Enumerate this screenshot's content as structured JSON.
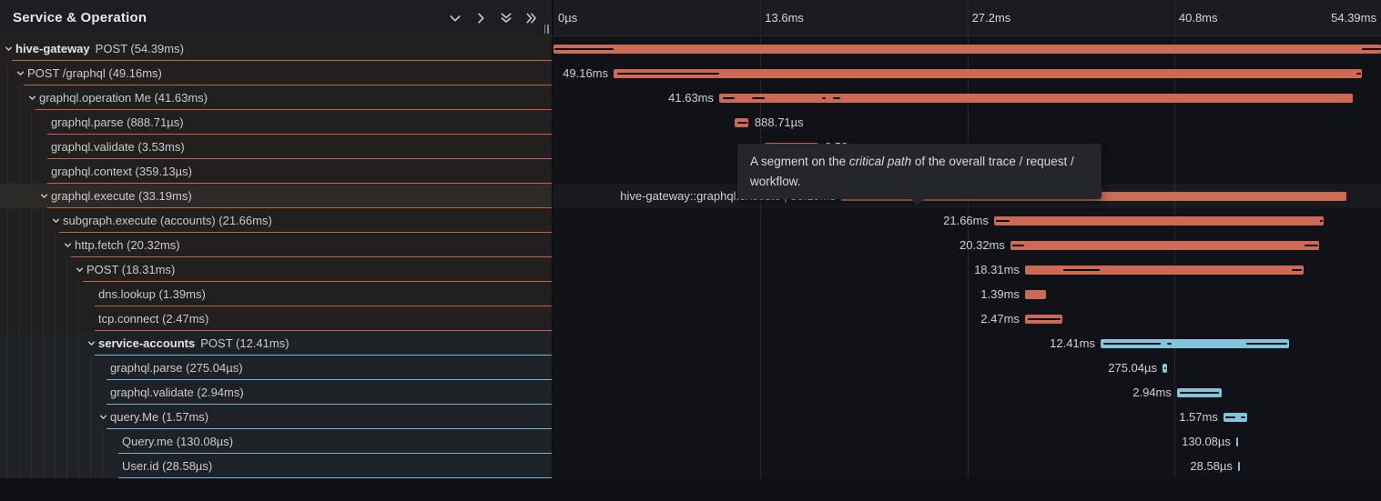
{
  "header": {
    "title": "Service & Operation",
    "icons": [
      {
        "name": "chevron-down-icon",
        "glyph": "chevron-down"
      },
      {
        "name": "chevron-right-icon",
        "glyph": "chevron-right"
      },
      {
        "name": "double-chevron-down-icon",
        "glyph": "double-chevron-down"
      },
      {
        "name": "double-chevron-right-icon",
        "glyph": "double-chevron-right"
      }
    ]
  },
  "timeline": {
    "total_ms": 54.39,
    "ticks": [
      {
        "label": "0µs",
        "pos_ms": 0,
        "align": "left"
      },
      {
        "label": "13.6ms",
        "pos_ms": 13.6,
        "align": "left"
      },
      {
        "label": "27.2ms",
        "pos_ms": 27.2,
        "align": "left"
      },
      {
        "label": "40.8ms",
        "pos_ms": 40.8,
        "align": "left"
      },
      {
        "label": "54.39ms",
        "pos_ms": 54.39,
        "align": "right"
      }
    ]
  },
  "colors": {
    "orange_bar": "#cd6a56",
    "blue_bar": "#82c3de",
    "orange_border": "#c75f49",
    "blue_border": "#74b8d4",
    "critical_line": "#0c0d0f"
  },
  "tooltip": {
    "text_pre": "A segment on the ",
    "text_italic": "critical path",
    "text_post": " of the overall trace / request / workflow."
  },
  "rows": [
    {
      "service": "hive-gateway",
      "label": "POST (54.39ms)",
      "depth": 0,
      "expandable": true,
      "color": "orange",
      "start_ms": 0,
      "duration_ms": 54.39,
      "bar_label": "",
      "label_side": "none",
      "critical": [
        [
          0,
          3.95
        ],
        [
          53.05,
          54.39
        ]
      ]
    },
    {
      "service": "",
      "label": "POST /graphql (49.16ms)",
      "depth": 1,
      "expandable": true,
      "color": "orange",
      "start_ms": 3.95,
      "duration_ms": 49.16,
      "bar_label": "49.16ms",
      "label_side": "left",
      "critical": [
        [
          4.1,
          10.9
        ],
        [
          52.7,
          53.05
        ]
      ]
    },
    {
      "service": "",
      "label": "graphql.operation Me (41.63ms)",
      "depth": 2,
      "expandable": true,
      "color": "orange",
      "start_ms": 10.89,
      "duration_ms": 41.63,
      "bar_label": "41.63ms",
      "label_side": "left",
      "critical": [
        [
          11.07,
          11.9
        ],
        [
          12.98,
          13.88
        ],
        [
          17.6,
          17.9
        ],
        [
          18.3,
          18.85
        ]
      ]
    },
    {
      "service": "",
      "label": "graphql.parse (888.71µs)",
      "depth": 3,
      "expandable": false,
      "color": "orange",
      "start_ms": 11.91,
      "duration_ms": 0.88871,
      "bar_label": "888.71µs",
      "label_side": "right",
      "critical": [
        [
          12.0,
          12.73
        ]
      ]
    },
    {
      "service": "",
      "label": "graphql.validate (3.53ms)",
      "depth": 3,
      "expandable": false,
      "color": "orange",
      "start_ms": 13.88,
      "duration_ms": 3.53,
      "bar_label": "3.53ms",
      "label_side": "right",
      "critical": []
    },
    {
      "service": "",
      "label": "graphql.context (359.13µs)",
      "depth": 3,
      "expandable": false,
      "color": "orange",
      "start_ms": 17.45,
      "duration_ms": 0.35913,
      "bar_label": "359.13µs",
      "label_side": "right",
      "critical": []
    },
    {
      "service": "",
      "label": "graphql.execute (33.19ms)",
      "depth": 3,
      "expandable": true,
      "color": "orange",
      "start_ms": 18.91,
      "duration_ms": 33.19,
      "bar_label": "hive-gateway::graphql.execute | 33.19ms",
      "label_side": "left",
      "critical": [
        [
          19.05,
          28.96
        ]
      ],
      "hovered": true
    },
    {
      "service": "",
      "label": "subgraph.execute (accounts) (21.66ms)",
      "depth": 4,
      "expandable": true,
      "color": "orange",
      "start_ms": 28.96,
      "duration_ms": 21.66,
      "bar_label": "21.66ms",
      "label_side": "left",
      "critical": [
        [
          29.0,
          29.95
        ],
        [
          50.35,
          50.55
        ]
      ]
    },
    {
      "service": "",
      "label": "http.fetch (20.32ms)",
      "depth": 5,
      "expandable": true,
      "color": "orange",
      "start_ms": 30.03,
      "duration_ms": 20.32,
      "bar_label": "20.32ms",
      "label_side": "left",
      "critical": [
        [
          30.1,
          30.95
        ],
        [
          49.3,
          50.25
        ]
      ]
    },
    {
      "service": "",
      "label": "POST (18.31ms)",
      "depth": 6,
      "expandable": true,
      "color": "orange",
      "start_ms": 30.99,
      "duration_ms": 18.31,
      "bar_label": "18.31ms",
      "label_side": "left",
      "critical": [
        [
          33.45,
          35.9
        ],
        [
          48.45,
          49.2
        ]
      ]
    },
    {
      "service": "",
      "label": "dns.lookup (1.39ms)",
      "depth": 7,
      "expandable": false,
      "color": "orange",
      "start_ms": 30.99,
      "duration_ms": 1.39,
      "bar_label": "1.39ms",
      "label_side": "left",
      "critical": []
    },
    {
      "service": "",
      "label": "tcp.connect (2.47ms)",
      "depth": 7,
      "expandable": false,
      "color": "orange",
      "start_ms": 30.99,
      "duration_ms": 2.47,
      "bar_label": "2.47ms",
      "label_side": "left",
      "critical": [
        [
          31.1,
          33.3
        ]
      ]
    },
    {
      "service": "service-accounts",
      "label": "POST (12.41ms)",
      "depth": 7,
      "expandable": true,
      "color": "blue",
      "start_ms": 35.96,
      "duration_ms": 12.41,
      "bar_label": "12.41ms",
      "label_side": "left",
      "critical": [
        [
          36.1,
          39.9
        ],
        [
          40.25,
          40.65
        ],
        [
          45.45,
          48.25
        ]
      ]
    },
    {
      "service": "",
      "label": "graphql.parse (275.04µs)",
      "depth": 8,
      "expandable": false,
      "color": "blue",
      "start_ms": 40.03,
      "duration_ms": 0.27504,
      "bar_label": "275.04µs",
      "label_side": "left",
      "critical": [
        [
          40.08,
          40.18
        ]
      ]
    },
    {
      "service": "",
      "label": "graphql.validate (2.94ms)",
      "depth": 8,
      "expandable": false,
      "color": "blue",
      "start_ms": 40.98,
      "duration_ms": 2.94,
      "bar_label": "2.94ms",
      "label_side": "left",
      "critical": [
        [
          41.1,
          43.75
        ]
      ]
    },
    {
      "service": "",
      "label": "query.Me (1.57ms)",
      "depth": 8,
      "expandable": true,
      "color": "blue",
      "start_ms": 44.03,
      "duration_ms": 1.57,
      "bar_label": "1.57ms",
      "label_side": "left",
      "critical": [
        [
          44.1,
          44.8
        ],
        [
          45.1,
          45.45
        ]
      ]
    },
    {
      "service": "",
      "label": "Query.me (130.08µs)",
      "depth": 9,
      "expandable": false,
      "color": "blue",
      "start_ms": 44.87,
      "duration_ms": 0.13008,
      "bar_label": "130.08µs",
      "label_side": "left",
      "critical": []
    },
    {
      "service": "",
      "label": "User.id (28.58µs)",
      "depth": 9,
      "expandable": false,
      "color": "blue",
      "start_ms": 44.99,
      "duration_ms": 0.02858,
      "bar_label": "28.58µs",
      "label_side": "left",
      "critical": []
    }
  ]
}
